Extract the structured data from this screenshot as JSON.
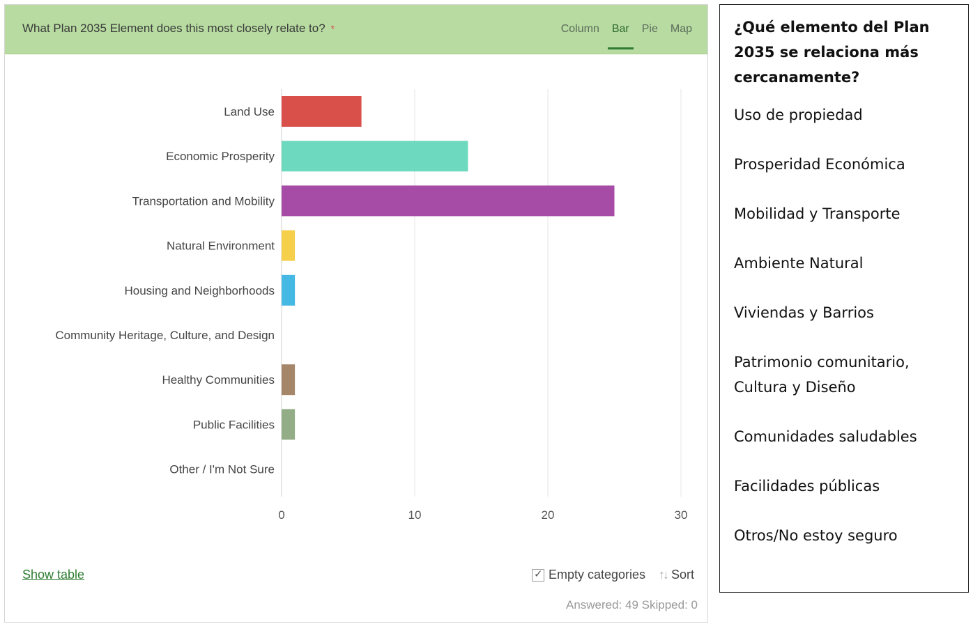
{
  "header": {
    "question": "What Plan 2035 Element does this most closely relate to?",
    "required_mark": "*",
    "tabs": [
      {
        "label": "Column",
        "active": false
      },
      {
        "label": "Bar",
        "active": true
      },
      {
        "label": "Pie",
        "active": false
      },
      {
        "label": "Map",
        "active": false
      }
    ]
  },
  "colors": {
    "header_bg": "#b7dba0",
    "accent": "#2e7d32"
  },
  "chart_data": {
    "type": "bar",
    "orientation": "horizontal",
    "categories": [
      "Land Use",
      "Economic Prosperity",
      "Transportation and Mobility",
      "Natural Environment",
      "Housing and Neighborhoods",
      "Community Heritage, Culture, and Design",
      "Healthy Communities",
      "Public Facilities",
      "Other / I'm Not Sure"
    ],
    "values": [
      6,
      14,
      25,
      1,
      1,
      0,
      1,
      1,
      0
    ],
    "colors": [
      "#d9504a",
      "#6dd9be",
      "#a64ca6",
      "#f6cf4b",
      "#45b8e3",
      "#cccccc",
      "#a58668",
      "#93ae87",
      "#cccccc"
    ],
    "xlim": [
      0,
      30
    ],
    "ticks": [
      0,
      10,
      20,
      30
    ],
    "grid": true
  },
  "footer": {
    "show_table": "Show table",
    "empty_categories": "Empty categories",
    "empty_categories_checked": true,
    "sort": "Sort",
    "answered": "Answered: 49  Skipped: 0"
  },
  "legend_es": {
    "title": "¿Qué elemento del Plan 2035 se relaciona más cercanamente?",
    "items": [
      "Uso de propiedad",
      "Prosperidad Económica",
      "Mobilidad y Transporte",
      "Ambiente Natural",
      "Viviendas y Barrios",
      "Patrimonio comunitario, Cultura y Diseño",
      "Comunidades saludables",
      "Facilidades públicas",
      "Otros/No estoy seguro"
    ]
  }
}
